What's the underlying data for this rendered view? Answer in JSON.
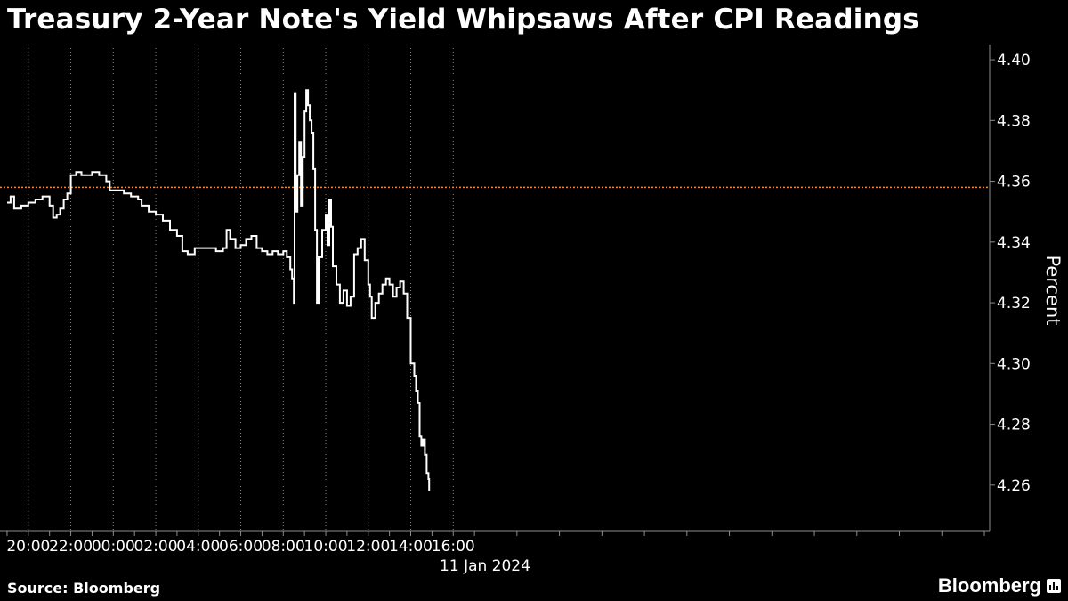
{
  "title": "Treasury 2-Year Note's Yield Whipsaws After CPI Readings",
  "source": "Source: Bloomberg",
  "brand": "Bloomberg",
  "brand_icon": "bloomberg-chart-icon",
  "colors": {
    "background": "#000000",
    "line": "#ffffff",
    "reference_line": "#e8892c",
    "grid": "#8c8c8c"
  },
  "chart_data": {
    "type": "line",
    "title": "Treasury 2-Year Note's Yield Whipsaws After CPI Readings",
    "ylabel": "Percent",
    "xlabel": "",
    "date_label": "11 Jan 2024",
    "x_ticks": [
      "20:00",
      "22:00",
      "00:00",
      "02:00",
      "04:00",
      "06:00",
      "08:00",
      "10:00",
      "12:00",
      "14:00",
      "16:00"
    ],
    "y_ticks": [
      "4.26",
      "4.28",
      "4.30",
      "4.32",
      "4.34",
      "4.36",
      "4.38",
      "4.40"
    ],
    "ylim": [
      4.245,
      4.405
    ],
    "xlim": [
      "18:40",
      "17:15"
    ],
    "grid": "vertical dotted",
    "reference_line": 4.358,
    "series": [
      {
        "values": [
          [
            "19:00",
            4.353
          ],
          [
            "19:10",
            4.355
          ],
          [
            "19:20",
            4.351
          ],
          [
            "19:40",
            4.352
          ],
          [
            "20:00",
            4.353
          ],
          [
            "20:20",
            4.354
          ],
          [
            "20:40",
            4.355
          ],
          [
            "21:00",
            4.352
          ],
          [
            "21:10",
            4.348
          ],
          [
            "21:20",
            4.349
          ],
          [
            "21:30",
            4.351
          ],
          [
            "21:40",
            4.354
          ],
          [
            "21:50",
            4.356
          ],
          [
            "22:00",
            4.362
          ],
          [
            "22:15",
            4.363
          ],
          [
            "22:30",
            4.362
          ],
          [
            "23:00",
            4.363
          ],
          [
            "23:20",
            4.362
          ],
          [
            "23:40",
            4.36
          ],
          [
            "23:50",
            4.357
          ],
          [
            "00:10",
            4.357
          ],
          [
            "00:30",
            4.356
          ],
          [
            "00:50",
            4.355
          ],
          [
            "01:10",
            4.354
          ],
          [
            "01:20",
            4.352
          ],
          [
            "01:40",
            4.35
          ],
          [
            "02:00",
            4.349
          ],
          [
            "02:20",
            4.347
          ],
          [
            "02:40",
            4.344
          ],
          [
            "03:00",
            4.342
          ],
          [
            "03:15",
            4.337
          ],
          [
            "03:30",
            4.336
          ],
          [
            "03:50",
            4.338
          ],
          [
            "04:10",
            4.338
          ],
          [
            "04:30",
            4.338
          ],
          [
            "04:50",
            4.337
          ],
          [
            "05:10",
            4.338
          ],
          [
            "05:20",
            4.344
          ],
          [
            "05:30",
            4.341
          ],
          [
            "05:45",
            4.338
          ],
          [
            "06:00",
            4.339
          ],
          [
            "06:15",
            4.341
          ],
          [
            "06:30",
            4.342
          ],
          [
            "06:45",
            4.338
          ],
          [
            "07:00",
            4.337
          ],
          [
            "07:15",
            4.336
          ],
          [
            "07:30",
            4.337
          ],
          [
            "07:45",
            4.336
          ],
          [
            "08:00",
            4.337
          ],
          [
            "08:10",
            4.335
          ],
          [
            "08:20",
            4.331
          ],
          [
            "08:25",
            4.328
          ],
          [
            "08:30",
            4.32
          ],
          [
            "08:32",
            4.389
          ],
          [
            "08:35",
            4.35
          ],
          [
            "08:40",
            4.362
          ],
          [
            "08:45",
            4.373
          ],
          [
            "08:50",
            4.352
          ],
          [
            "08:55",
            4.368
          ],
          [
            "09:00",
            4.383
          ],
          [
            "09:05",
            4.39
          ],
          [
            "09:10",
            4.385
          ],
          [
            "09:15",
            4.38
          ],
          [
            "09:20",
            4.376
          ],
          [
            "09:25",
            4.364
          ],
          [
            "09:30",
            4.344
          ],
          [
            "09:35",
            4.32
          ],
          [
            "09:40",
            4.335
          ],
          [
            "09:50",
            4.344
          ],
          [
            "10:00",
            4.349
          ],
          [
            "10:05",
            4.339
          ],
          [
            "10:10",
            4.354
          ],
          [
            "10:15",
            4.345
          ],
          [
            "10:20",
            4.332
          ],
          [
            "10:30",
            4.326
          ],
          [
            "10:40",
            4.32
          ],
          [
            "10:50",
            4.324
          ],
          [
            "11:00",
            4.319
          ],
          [
            "11:10",
            4.322
          ],
          [
            "11:20",
            4.336
          ],
          [
            "11:30",
            4.338
          ],
          [
            "11:40",
            4.341
          ],
          [
            "11:50",
            4.334
          ],
          [
            "12:00",
            4.326
          ],
          [
            "12:05",
            4.322
          ],
          [
            "12:10",
            4.315
          ],
          [
            "12:20",
            4.32
          ],
          [
            "12:30",
            4.323
          ],
          [
            "12:40",
            4.326
          ],
          [
            "12:50",
            4.328
          ],
          [
            "13:00",
            4.326
          ],
          [
            "13:10",
            4.322
          ],
          [
            "13:20",
            4.325
          ],
          [
            "13:30",
            4.327
          ],
          [
            "13:40",
            4.323
          ],
          [
            "13:50",
            4.315
          ],
          [
            "14:00",
            4.3
          ],
          [
            "14:10",
            4.296
          ],
          [
            "14:15",
            4.291
          ],
          [
            "14:20",
            4.287
          ],
          [
            "14:25",
            4.276
          ],
          [
            "14:30",
            4.273
          ],
          [
            "14:35",
            4.275
          ],
          [
            "14:40",
            4.27
          ],
          [
            "14:45",
            4.264
          ],
          [
            "14:50",
            4.262
          ],
          [
            "14:52",
            4.258
          ]
        ]
      }
    ]
  }
}
